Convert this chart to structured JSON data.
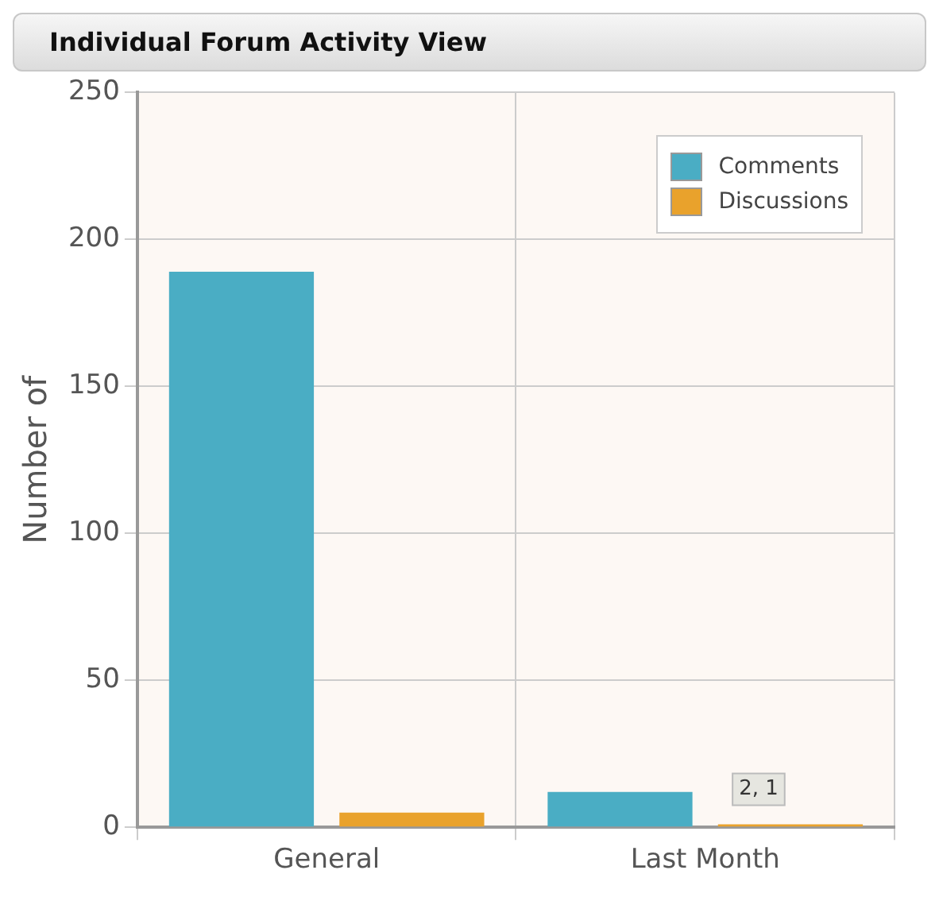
{
  "chart_data": {
    "type": "bar",
    "title": "Individual Forum Activity View",
    "ylabel": "Number of",
    "categories": [
      "General",
      "Last Month"
    ],
    "series": [
      {
        "name": "Comments",
        "color": "#4aadc4",
        "values": [
          189,
          12
        ]
      },
      {
        "name": "Discussions",
        "color": "#e9a22c",
        "values": [
          5,
          1
        ]
      }
    ],
    "ylim": [
      0,
      250
    ],
    "yticks": [
      0,
      50,
      100,
      150,
      200,
      250
    ],
    "grid": true,
    "legend": "top right",
    "annotations": [
      "2, 1"
    ]
  }
}
